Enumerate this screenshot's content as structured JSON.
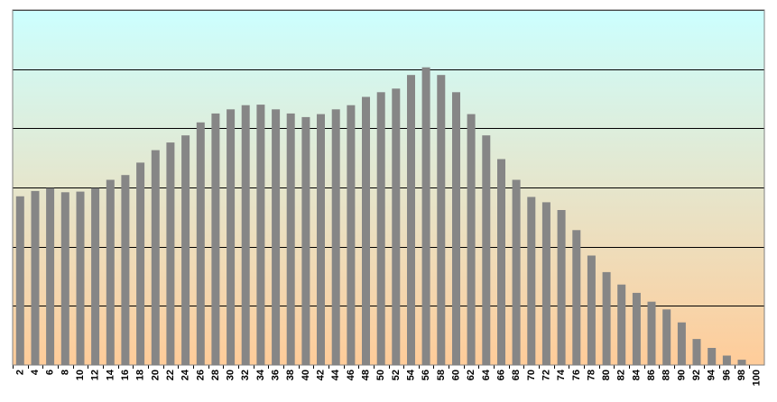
{
  "chart_data": {
    "type": "bar",
    "title": "",
    "xlabel": "",
    "ylabel": "",
    "ylim": [
      0,
      6
    ],
    "grid": true,
    "colors": {
      "bar": "#868686",
      "plot_top": "#ccffff",
      "plot_bottom": "#ffcc99",
      "gridline": "#000000",
      "border": "#808080"
    },
    "categories": [
      "2",
      "4",
      "6",
      "8",
      "10",
      "12",
      "14",
      "16",
      "18",
      "20",
      "22",
      "24",
      "26",
      "28",
      "30",
      "32",
      "34",
      "36",
      "38",
      "40",
      "42",
      "44",
      "46",
      "48",
      "50",
      "52",
      "54",
      "56",
      "58",
      "60",
      "62",
      "64",
      "66",
      "68",
      "70",
      "72",
      "74",
      "76",
      "78",
      "80",
      "82",
      "84",
      "86",
      "88",
      "90",
      "92",
      "94",
      "96",
      "98",
      "100"
    ],
    "values": [
      2.85,
      2.94,
      2.99,
      2.92,
      2.93,
      2.99,
      3.13,
      3.21,
      3.42,
      3.63,
      3.76,
      3.88,
      4.1,
      4.25,
      4.32,
      4.39,
      4.4,
      4.32,
      4.25,
      4.19,
      4.24,
      4.32,
      4.39,
      4.53,
      4.61,
      4.67,
      4.9,
      5.03,
      4.9,
      4.61,
      4.24,
      3.88,
      3.48,
      3.13,
      2.84,
      2.75,
      2.62,
      2.28,
      1.85,
      1.57,
      1.36,
      1.22,
      1.07,
      0.94,
      0.72,
      0.44,
      0.29,
      0.16,
      0.09,
      0
    ]
  }
}
